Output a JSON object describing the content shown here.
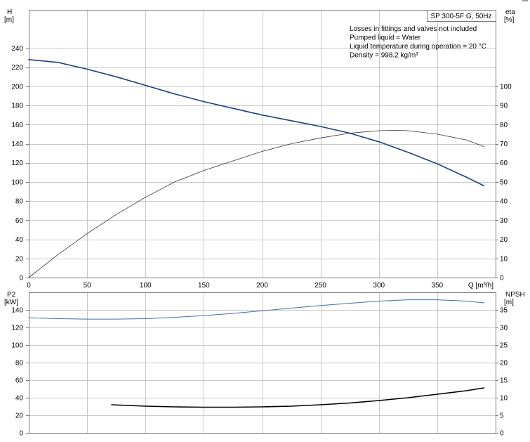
{
  "chart_data": [
    {
      "type": "line",
      "title": "SP 300-5F G, 50Hz",
      "notes": [
        "Losses in fittings and valves not included",
        "Pumped liquid = Water",
        "Liquid temperature during operation = 20 °C",
        "Density = 998.2 kg/m³"
      ],
      "xlabel": "Q [m³/h]",
      "xlim": [
        0,
        400
      ],
      "xticks": [
        0,
        50,
        100,
        150,
        200,
        250,
        300,
        350
      ],
      "ylabel_left": [
        "H",
        "[m]"
      ],
      "ylim_left": [
        0,
        280
      ],
      "yticks_left": [
        0,
        20,
        40,
        60,
        80,
        100,
        120,
        140,
        160,
        180,
        200,
        220,
        240
      ],
      "ylabel_right": [
        "eta",
        "[%]"
      ],
      "ylim_right": [
        0,
        140
      ],
      "yticks_right": [
        0,
        10,
        20,
        30,
        40,
        50,
        60,
        70,
        80,
        90,
        100
      ],
      "grid": true,
      "series": [
        {
          "axis": "left",
          "color": "#1f3f7f",
          "x": [
            0,
            25,
            50,
            75,
            100,
            125,
            150,
            175,
            200,
            225,
            250,
            275,
            300,
            325,
            350,
            375,
            390
          ],
          "y": [
            228,
            225,
            218,
            210,
            201,
            192,
            184,
            177,
            170,
            164,
            158,
            151,
            142,
            131,
            119,
            105,
            96
          ]
        },
        {
          "axis": "right",
          "color": "#333333",
          "x": [
            0,
            25,
            50,
            75,
            100,
            125,
            150,
            175,
            200,
            225,
            250,
            275,
            300,
            315,
            325,
            350,
            375,
            390
          ],
          "y": [
            0,
            12,
            23,
            33,
            42,
            50,
            56,
            61,
            66,
            70,
            73,
            75.5,
            76.8,
            77,
            76.8,
            75,
            72,
            68.5
          ]
        }
      ]
    },
    {
      "type": "line",
      "xlim": [
        0,
        400
      ],
      "ylabel_left": [
        "P2",
        "[kW]"
      ],
      "ylim_left": [
        0,
        160
      ],
      "yticks_left": [
        0,
        20,
        40,
        60,
        80,
        100,
        120,
        140
      ],
      "ylabel_right": [
        "NPSH",
        "[m]"
      ],
      "ylim_right": [
        0,
        40
      ],
      "yticks_right": [
        0,
        5,
        10,
        15,
        20,
        25,
        30,
        35
      ],
      "grid": true,
      "series": [
        {
          "axis": "left",
          "color": "#3f6fa8",
          "x": [
            0,
            25,
            50,
            75,
            100,
            125,
            150,
            175,
            200,
            225,
            250,
            275,
            300,
            325,
            350,
            375,
            390
          ],
          "y": [
            131,
            130,
            129.5,
            129.5,
            130,
            131.5,
            133.5,
            136,
            139,
            142,
            145,
            147.5,
            150,
            151.5,
            151.5,
            150,
            148
          ]
        },
        {
          "axis": "right",
          "color": "#000000",
          "x": [
            71,
            100,
            125,
            150,
            175,
            200,
            225,
            250,
            275,
            300,
            325,
            350,
            375,
            390
          ],
          "y": [
            8,
            7.6,
            7.4,
            7.3,
            7.3,
            7.4,
            7.6,
            8,
            8.5,
            9.2,
            10,
            11,
            12,
            12.8
          ]
        }
      ]
    }
  ]
}
